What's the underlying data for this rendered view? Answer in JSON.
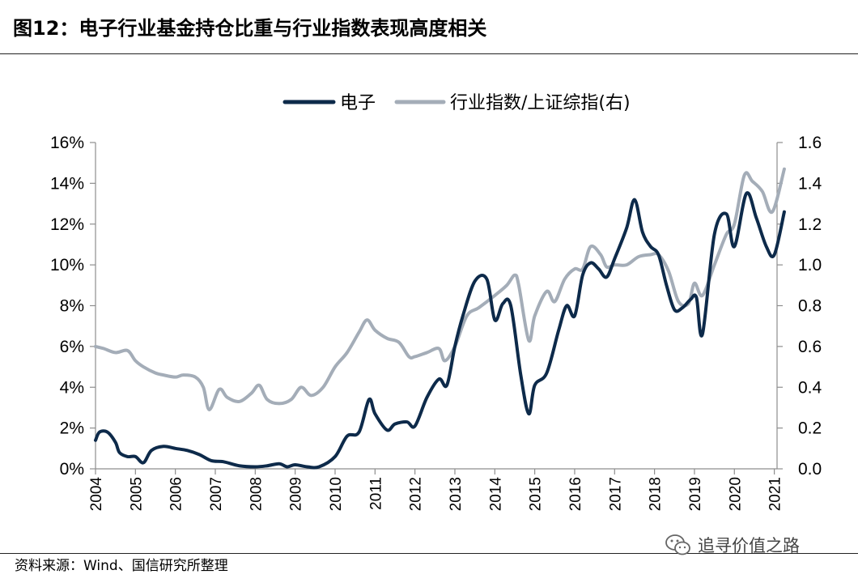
{
  "title": "图12：电子行业基金持仓比重与行业指数表现高度相关",
  "source": "资料来源：Wind、国信研究所整理",
  "watermark": "追寻价值之路",
  "chart_data": {
    "type": "line",
    "title": "图12：电子行业基金持仓比重与行业指数表现高度相关",
    "x_ticks": [
      "2004",
      "2005",
      "2006",
      "2007",
      "2008",
      "2009",
      "2010",
      "2011",
      "2012",
      "2013",
      "2014",
      "2015",
      "2016",
      "2017",
      "2018",
      "2019",
      "2020",
      "2021"
    ],
    "y_left": {
      "ticks": [
        "0%",
        "2%",
        "4%",
        "6%",
        "8%",
        "10%",
        "12%",
        "14%",
        "16%"
      ],
      "range": [
        0,
        16
      ]
    },
    "y_right": {
      "ticks": [
        "0.0",
        "0.2",
        "0.4",
        "0.6",
        "0.8",
        "1.0",
        "1.2",
        "1.4",
        "1.6"
      ],
      "range": [
        0,
        1.6
      ]
    },
    "x_range": [
      2004,
      2021.25
    ],
    "legend_position": "top-center",
    "grid": false,
    "series": [
      {
        "name": "电子",
        "axis": "left",
        "color": "#0d2a4a",
        "points": [
          [
            2004.0,
            1.4
          ],
          [
            2004.1,
            1.8
          ],
          [
            2004.3,
            1.8
          ],
          [
            2004.5,
            1.3
          ],
          [
            2004.6,
            0.8
          ],
          [
            2004.8,
            0.6
          ],
          [
            2005.0,
            0.6
          ],
          [
            2005.2,
            0.3
          ],
          [
            2005.4,
            0.9
          ],
          [
            2005.7,
            1.1
          ],
          [
            2006.0,
            1.0
          ],
          [
            2006.3,
            0.9
          ],
          [
            2006.6,
            0.7
          ],
          [
            2006.9,
            0.4
          ],
          [
            2007.2,
            0.35
          ],
          [
            2007.6,
            0.15
          ],
          [
            2008.0,
            0.1
          ],
          [
            2008.3,
            0.15
          ],
          [
            2008.6,
            0.25
          ],
          [
            2008.8,
            0.1
          ],
          [
            2009.0,
            0.2
          ],
          [
            2009.3,
            0.1
          ],
          [
            2009.6,
            0.1
          ],
          [
            2010.0,
            0.6
          ],
          [
            2010.3,
            1.6
          ],
          [
            2010.6,
            1.8
          ],
          [
            2010.85,
            3.4
          ],
          [
            2011.0,
            2.7
          ],
          [
            2011.3,
            1.9
          ],
          [
            2011.5,
            2.2
          ],
          [
            2011.8,
            2.3
          ],
          [
            2012.0,
            2.1
          ],
          [
            2012.3,
            3.5
          ],
          [
            2012.6,
            4.4
          ],
          [
            2012.8,
            4.1
          ],
          [
            2013.0,
            6.0
          ],
          [
            2013.2,
            7.5
          ],
          [
            2013.5,
            9.2
          ],
          [
            2013.8,
            9.3
          ],
          [
            2014.0,
            7.3
          ],
          [
            2014.2,
            8.1
          ],
          [
            2014.4,
            8.0
          ],
          [
            2014.65,
            4.6
          ],
          [
            2014.85,
            2.7
          ],
          [
            2015.0,
            4.1
          ],
          [
            2015.3,
            4.7
          ],
          [
            2015.6,
            6.8
          ],
          [
            2015.8,
            8.0
          ],
          [
            2016.0,
            7.5
          ],
          [
            2016.2,
            9.5
          ],
          [
            2016.4,
            10.1
          ],
          [
            2016.6,
            9.8
          ],
          [
            2016.8,
            9.4
          ],
          [
            2017.0,
            10.3
          ],
          [
            2017.3,
            11.8
          ],
          [
            2017.5,
            13.2
          ],
          [
            2017.7,
            11.6
          ],
          [
            2017.9,
            10.9
          ],
          [
            2018.1,
            10.5
          ],
          [
            2018.3,
            9.0
          ],
          [
            2018.5,
            7.8
          ],
          [
            2018.7,
            7.9
          ],
          [
            2018.9,
            8.3
          ],
          [
            2019.05,
            8.4
          ],
          [
            2019.2,
            6.6
          ],
          [
            2019.5,
            11.5
          ],
          [
            2019.8,
            12.5
          ],
          [
            2020.0,
            10.9
          ],
          [
            2020.3,
            13.5
          ],
          [
            2020.55,
            12.3
          ],
          [
            2020.8,
            10.9
          ],
          [
            2021.0,
            10.5
          ],
          [
            2021.25,
            12.6
          ]
        ]
      },
      {
        "name": "行业指数/上证综指(右)",
        "axis": "right",
        "color": "#a4adb8",
        "points": [
          [
            2004.0,
            0.6
          ],
          [
            2004.2,
            0.59
          ],
          [
            2004.5,
            0.57
          ],
          [
            2004.8,
            0.58
          ],
          [
            2005.0,
            0.53
          ],
          [
            2005.2,
            0.5
          ],
          [
            2005.5,
            0.47
          ],
          [
            2005.7,
            0.46
          ],
          [
            2006.0,
            0.45
          ],
          [
            2006.2,
            0.46
          ],
          [
            2006.5,
            0.45
          ],
          [
            2006.7,
            0.4
          ],
          [
            2006.85,
            0.29
          ],
          [
            2007.1,
            0.39
          ],
          [
            2007.3,
            0.35
          ],
          [
            2007.6,
            0.33
          ],
          [
            2007.9,
            0.37
          ],
          [
            2008.1,
            0.41
          ],
          [
            2008.3,
            0.34
          ],
          [
            2008.6,
            0.32
          ],
          [
            2008.9,
            0.34
          ],
          [
            2009.15,
            0.4
          ],
          [
            2009.4,
            0.36
          ],
          [
            2009.7,
            0.4
          ],
          [
            2010.0,
            0.5
          ],
          [
            2010.3,
            0.57
          ],
          [
            2010.6,
            0.67
          ],
          [
            2010.8,
            0.73
          ],
          [
            2011.0,
            0.68
          ],
          [
            2011.3,
            0.64
          ],
          [
            2011.6,
            0.62
          ],
          [
            2011.85,
            0.55
          ],
          [
            2012.0,
            0.55
          ],
          [
            2012.3,
            0.57
          ],
          [
            2012.6,
            0.59
          ],
          [
            2012.75,
            0.53
          ],
          [
            2013.0,
            0.6
          ],
          [
            2013.3,
            0.75
          ],
          [
            2013.6,
            0.79
          ],
          [
            2014.0,
            0.85
          ],
          [
            2014.3,
            0.9
          ],
          [
            2014.5,
            0.95
          ],
          [
            2014.6,
            0.9
          ],
          [
            2014.85,
            0.63
          ],
          [
            2015.0,
            0.75
          ],
          [
            2015.3,
            0.87
          ],
          [
            2015.5,
            0.82
          ],
          [
            2015.75,
            0.93
          ],
          [
            2016.0,
            0.98
          ],
          [
            2016.2,
            0.98
          ],
          [
            2016.4,
            1.09
          ],
          [
            2016.65,
            1.05
          ],
          [
            2016.8,
            0.99
          ],
          [
            2017.0,
            1.0
          ],
          [
            2017.3,
            1.0
          ],
          [
            2017.6,
            1.04
          ],
          [
            2017.9,
            1.05
          ],
          [
            2018.1,
            1.05
          ],
          [
            2018.35,
            0.97
          ],
          [
            2018.6,
            0.82
          ],
          [
            2018.85,
            0.81
          ],
          [
            2019.0,
            0.91
          ],
          [
            2019.2,
            0.85
          ],
          [
            2019.5,
            1.0
          ],
          [
            2019.8,
            1.15
          ],
          [
            2020.0,
            1.2
          ],
          [
            2020.25,
            1.44
          ],
          [
            2020.45,
            1.41
          ],
          [
            2020.7,
            1.36
          ],
          [
            2020.95,
            1.26
          ],
          [
            2021.25,
            1.47
          ]
        ]
      }
    ]
  }
}
